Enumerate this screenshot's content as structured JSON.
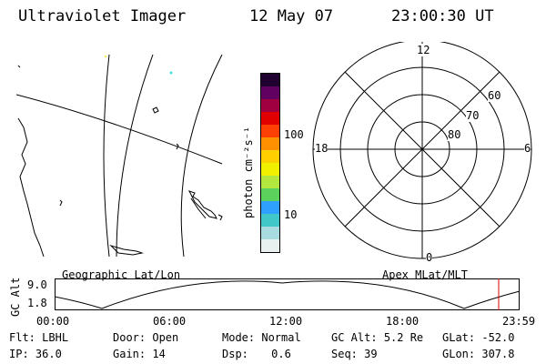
{
  "header": {
    "instrument": "Ultraviolet Imager",
    "date": "12 May 07",
    "time": "23:00:30 UT"
  },
  "colorbar": {
    "unit_label": "photon cm⁻²s⁻¹",
    "ticks": [
      "100",
      "10"
    ],
    "colors": [
      "#e8f0f0",
      "#a8dce0",
      "#40c8c8",
      "#30a0ff",
      "#5bd25b",
      "#b4e640",
      "#f0f000",
      "#ffd000",
      "#ff9000",
      "#ff4000",
      "#e00000",
      "#a00040",
      "#600060",
      "#200030"
    ]
  },
  "polar": {
    "mlt_labels": {
      "top": "12",
      "bottom": "0",
      "left": "18",
      "right": "6"
    },
    "lat_labels": [
      "60",
      "70",
      "80"
    ],
    "caption": "Apex MLat/MLT"
  },
  "map": {
    "caption": "Geographic Lat/Lon"
  },
  "timeline": {
    "axis_label": "GC Alt",
    "y_ticks": [
      "9.0",
      "1.8"
    ],
    "x_ticks": [
      "00:00",
      "06:00",
      "12:00",
      "18:00",
      "23:59"
    ],
    "marker_color": "#e00000"
  },
  "footer": {
    "row1": [
      {
        "key": "Flt:",
        "val": "LBHL"
      },
      {
        "key": "Door:",
        "val": "Open"
      },
      {
        "key": "Mode:",
        "val": "Normal"
      },
      {
        "key": "GC Alt:",
        "val": "5.2 Re"
      },
      {
        "key": "GLat:",
        "val": "-52.0"
      }
    ],
    "row2": [
      {
        "key": "IP:",
        "val": "36.0"
      },
      {
        "key": "Gain:",
        "val": "14"
      },
      {
        "key": "Dsp:",
        "val": "0.6"
      },
      {
        "key": "Seq:",
        "val": "39"
      },
      {
        "key": "GLon:",
        "val": "307.8"
      }
    ]
  }
}
